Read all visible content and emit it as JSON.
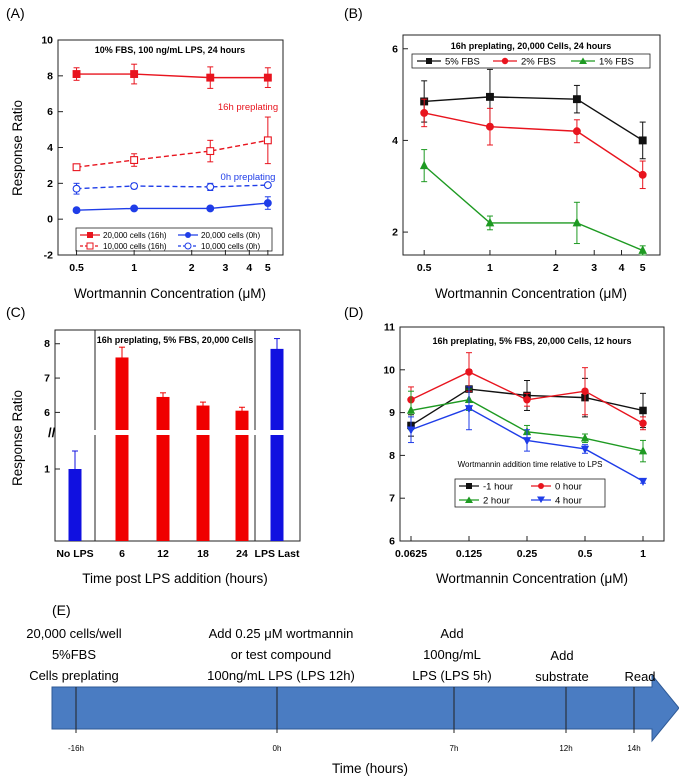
{
  "panels": {
    "A": {
      "label": "(A)",
      "title": "10% FBS, 100 ng/mL LPS, 24 hours",
      "ylabel": "Response Ratio",
      "xlabel": "Wortmannin Concentration (μM)",
      "yticks": [
        "-2",
        "0",
        "2",
        "4",
        "6",
        "8",
        "10"
      ],
      "xticks": [
        "0.5",
        "1",
        "2",
        "3",
        "4",
        "5"
      ],
      "note_red": "16h preplating",
      "note_blue": "0h preplating"
    },
    "B": {
      "label": "(B)",
      "title": "16h preplating, 20,000 Cells, 24 hours",
      "xlabel": "Wortmannin Concentration (μM)",
      "yticks": [
        "2",
        "4",
        "6"
      ],
      "xticks": [
        "0.5",
        "1",
        "2",
        "3",
        "4",
        "5"
      ]
    },
    "C": {
      "label": "(C)",
      "title": "16h preplating, 5% FBS, 20,000 Cells",
      "ylabel": "Response Ratio",
      "xlabel": "Time post LPS addition (hours)",
      "yticks_low": [
        "1"
      ],
      "yticks_high": [
        "6",
        "7",
        "8"
      ],
      "xticks": [
        "No LPS",
        "6",
        "12",
        "18",
        "24",
        "LPS Last"
      ]
    },
    "D": {
      "label": "(D)",
      "title": "16h preplating, 5% FBS, 20,000 Cells, 12 hours",
      "xlabel": "Wortmannin Concentration (μM)",
      "yticks": [
        "6",
        "7",
        "8",
        "9",
        "10",
        "11"
      ],
      "xticks": [
        "0.0625",
        "0.125",
        "0.25",
        "0.5",
        "1"
      ],
      "legend_title": "Wortmannin addition time relative to LPS"
    },
    "E": {
      "label": "(E)",
      "xlabel": "Time (hours)",
      "events": [
        {
          "lines": [
            "20,000 cells/well",
            "5%FBS",
            "Cells preplating"
          ],
          "tick": "-16h"
        },
        {
          "lines": [
            "Add 0.25 μM wortmannin",
            "or test compound",
            "100ng/mL LPS (LPS 12h)"
          ],
          "tick": "0h"
        },
        {
          "lines": [
            "Add",
            "100ng/mL",
            "LPS (LPS 5h)"
          ],
          "tick": "7h"
        },
        {
          "lines": [
            "Add",
            "substrate"
          ],
          "tick": "12h"
        },
        {
          "lines": [
            "Read"
          ],
          "tick": "14h"
        }
      ]
    }
  },
  "colors": {
    "red": "#e8141e",
    "blue": "#1f3de8",
    "black": "#111111",
    "green": "#1e9a22",
    "arrow_blue": "#4a7cc2",
    "bar_red": "#f00000",
    "bar_blue": "#1010e0"
  },
  "chart_data": [
    {
      "panel": "A",
      "type": "line",
      "x_scale": "log",
      "x": [
        0.5,
        1,
        2.5,
        5
      ],
      "ylim": [
        -2,
        10
      ],
      "series": [
        {
          "name": "20,000 cells (16h)",
          "color": "red",
          "style": "solid",
          "filled": true,
          "marker": "square",
          "values": [
            8.1,
            8.1,
            7.9,
            7.9
          ],
          "err": [
            0.35,
            0.55,
            0.6,
            0.55
          ]
        },
        {
          "name": "10,000 cells (16h)",
          "color": "red",
          "style": "dashed",
          "filled": false,
          "marker": "square",
          "values": [
            2.9,
            3.3,
            3.8,
            4.4
          ],
          "err": [
            0.15,
            0.35,
            0.6,
            1.3
          ]
        },
        {
          "name": "20,000 cells (0h)",
          "color": "blue",
          "style": "solid",
          "filled": true,
          "marker": "circle",
          "values": [
            0.5,
            0.6,
            0.6,
            0.9
          ],
          "err": [
            0.1,
            0.1,
            0.1,
            0.35
          ]
        },
        {
          "name": "10,000 cells (0h)",
          "color": "blue",
          "style": "dashed",
          "filled": false,
          "marker": "circle",
          "values": [
            1.7,
            1.85,
            1.8,
            1.9
          ],
          "err": [
            0.3,
            0.15,
            0.2,
            0.12
          ]
        }
      ]
    },
    {
      "panel": "B",
      "type": "line",
      "x_scale": "log",
      "x": [
        0.5,
        1,
        2.5,
        5
      ],
      "ylim": [
        1.5,
        6.3
      ],
      "series": [
        {
          "name": "5% FBS",
          "color": "black",
          "marker": "square",
          "values": [
            4.85,
            4.95,
            4.9,
            4.0
          ],
          "err": [
            0.45,
            0.6,
            0.3,
            0.4
          ]
        },
        {
          "name": "2% FBS",
          "color": "red",
          "marker": "circle",
          "values": [
            4.6,
            4.3,
            4.2,
            3.25
          ],
          "err": [
            0.3,
            0.4,
            0.25,
            0.3
          ]
        },
        {
          "name": "1% FBS",
          "color": "green",
          "marker": "triangle",
          "values": [
            3.45,
            2.2,
            2.2,
            1.6
          ],
          "err": [
            0.35,
            0.15,
            0.45,
            0.1
          ]
        }
      ]
    },
    {
      "panel": "C",
      "type": "bar",
      "categories": [
        "No LPS",
        "6",
        "12",
        "18",
        "24",
        "LPS Last"
      ],
      "values": [
        1.0,
        7.6,
        6.45,
        6.2,
        6.05,
        7.85
      ],
      "err": [
        0.25,
        0.3,
        0.12,
        0.1,
        0.1,
        0.3
      ],
      "colors": [
        "bar_blue",
        "bar_red",
        "bar_red",
        "bar_red",
        "bar_red",
        "bar_blue"
      ],
      "axis_break": true
    },
    {
      "panel": "D",
      "type": "line",
      "x_scale": "log",
      "x": [
        0.0625,
        0.125,
        0.25,
        0.5,
        1
      ],
      "ylim": [
        6,
        11
      ],
      "series": [
        {
          "name": "-1 hour",
          "color": "black",
          "marker": "square",
          "values": [
            8.7,
            9.55,
            9.4,
            9.35,
            9.05
          ],
          "err": [
            0.25,
            0.45,
            0.35,
            0.45,
            0.4
          ]
        },
        {
          "name": "0 hour",
          "color": "red",
          "marker": "circle",
          "values": [
            9.3,
            9.95,
            9.3,
            9.5,
            8.75
          ],
          "err": [
            0.3,
            0.45,
            0.15,
            0.55,
            0.15
          ]
        },
        {
          "name": "2 hour",
          "color": "green",
          "marker": "triangle",
          "values": [
            9.05,
            9.3,
            8.55,
            8.4,
            8.1
          ],
          "err": [
            0.45,
            0.25,
            0.15,
            0.1,
            0.25
          ]
        },
        {
          "name": "4 hour",
          "color": "blue",
          "marker": "triangle-down",
          "values": [
            8.6,
            9.1,
            8.35,
            8.15,
            7.4
          ],
          "err": [
            0.3,
            0.5,
            0.25,
            0.1,
            0.05
          ]
        }
      ]
    }
  ]
}
